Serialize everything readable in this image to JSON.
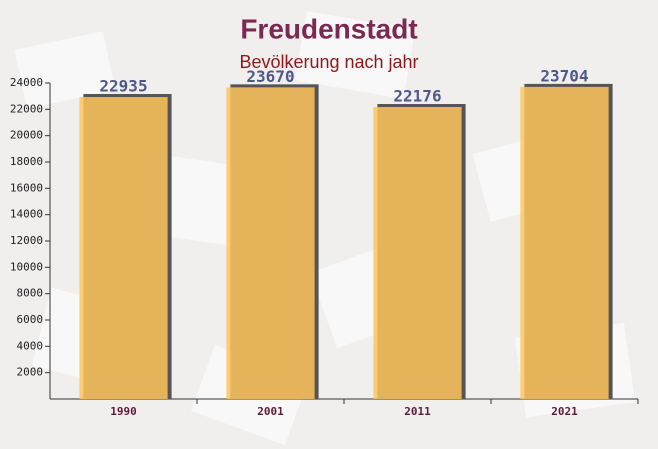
{
  "chart_data": {
    "type": "bar",
    "title": "Freudenstadt",
    "subtitle": "Bevölkerung nach jahr",
    "categories": [
      "1990",
      "2001",
      "2011",
      "2021"
    ],
    "values": [
      22935,
      23670,
      22176,
      23704
    ],
    "color": "#ffc55c",
    "ylim": [
      0,
      24000
    ],
    "yticks": [
      2000,
      4000,
      6000,
      8000,
      10000,
      12000,
      14000,
      16000,
      18000,
      20000,
      22000,
      24000
    ]
  }
}
